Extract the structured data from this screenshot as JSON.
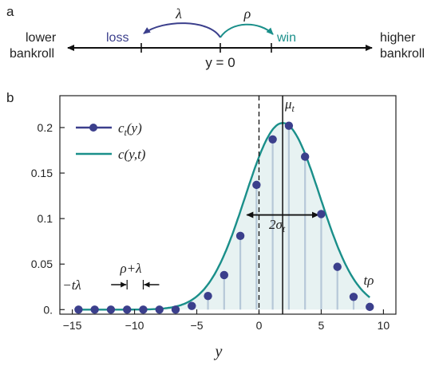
{
  "panel_a": {
    "label": "a",
    "left_text": [
      "lower",
      "bankroll"
    ],
    "right_text": [
      "higher",
      "bankroll"
    ],
    "loss_label": "loss",
    "win_label": "win",
    "lambda_label": "λ",
    "rho_label": "ρ",
    "center_label": "y = 0",
    "colors": {
      "loss": "#3b3f8c",
      "win": "#1a8f8a",
      "axis": "#111111"
    }
  },
  "panel_b": {
    "label": "b",
    "legend": [
      {
        "name": "c_t(y)",
        "text_main": "c",
        "text_sub": "t",
        "text_tail": "(y)",
        "color": "#3b3f8c",
        "marker": "circle"
      },
      {
        "name": "c(y,t)",
        "text_main": "c(y,t)",
        "color": "#1a8f8a",
        "marker": "line"
      }
    ],
    "annotations": {
      "mu": {
        "main": "μ",
        "sub": "t"
      },
      "sigma": {
        "main": "2σ",
        "sub": "t"
      },
      "left_end": "−tλ",
      "right_end": "tρ",
      "step": "ρ+λ"
    },
    "colors": {
      "points": "#3b3f8c",
      "curve": "#1a8f8a",
      "fill": "#e7f2f2",
      "stems": "#b6c8d8"
    }
  },
  "chart_data": {
    "type": "scatter",
    "xlabel": "y",
    "ylabel": "",
    "xlim": [
      -16,
      11
    ],
    "ylim": [
      -0.005,
      0.235
    ],
    "xticks": [
      -15,
      -10,
      -5,
      0,
      5,
      10
    ],
    "yticks": [
      0,
      0.05,
      0.1,
      0.15,
      0.2
    ],
    "ytick_labels": [
      "0.",
      "0.05",
      "0.1",
      "0.15",
      "0.2"
    ],
    "mu_t": 1.9,
    "sigma_t": 3.0,
    "curve_amplitude": 0.205,
    "series": [
      {
        "name": "c_t(y)",
        "x": [
          -14.5,
          -13.2,
          -11.9,
          -10.6,
          -9.3,
          -8.0,
          -6.7,
          -5.4,
          -4.1,
          -2.8,
          -1.5,
          -0.2,
          1.1,
          2.4,
          3.7,
          5.0,
          6.3,
          7.6,
          8.9
        ],
        "y": [
          0.0,
          0.0,
          0.0,
          0.0,
          0.0,
          0.0,
          0.0,
          0.004,
          0.015,
          0.038,
          0.081,
          0.137,
          0.187,
          0.202,
          0.168,
          0.105,
          0.047,
          0.014,
          0.003
        ]
      }
    ]
  }
}
